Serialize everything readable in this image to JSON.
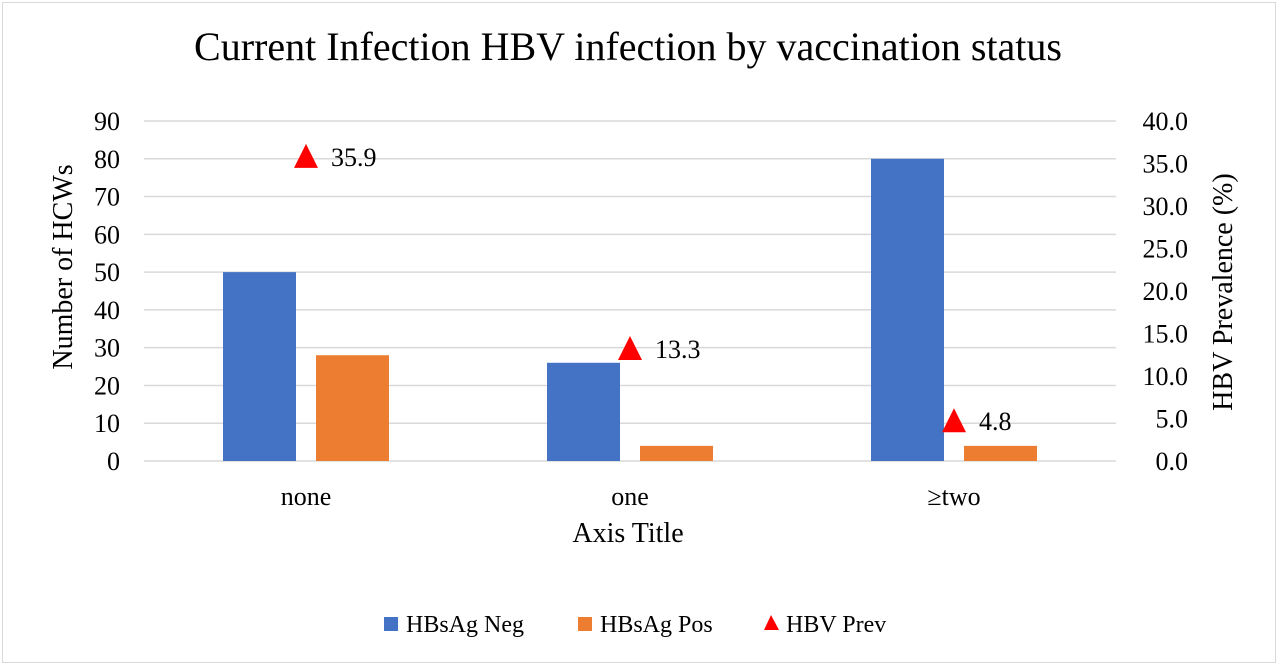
{
  "chart_data": {
    "type": "bar",
    "title": "Current Infection HBV infection by vaccination status",
    "xlabel": "Axis Title",
    "ylabel": "Number of HCWs",
    "y2label": "HBV Prevalence (%)",
    "categories": [
      "none",
      "one",
      "≥two"
    ],
    "ylim": [
      0,
      90
    ],
    "y_ticks": [
      "0",
      "10",
      "20",
      "30",
      "40",
      "50",
      "60",
      "70",
      "80",
      "90"
    ],
    "y2lim": [
      0,
      40
    ],
    "y2_ticks": [
      "0.0",
      "5.0",
      "10.0",
      "15.0",
      "20.0",
      "25.0",
      "30.0",
      "35.0",
      "40.0"
    ],
    "grid": true,
    "legend_position": "bottom",
    "series": [
      {
        "name": "HBsAg Neg",
        "kind": "bar",
        "axis": "left",
        "color": "#4472C4",
        "values": [
          50,
          26,
          80
        ]
      },
      {
        "name": "HBsAg Pos",
        "kind": "bar",
        "axis": "left",
        "color": "#ED7D31",
        "values": [
          28,
          4,
          4
        ]
      },
      {
        "name": "HBV Prev",
        "kind": "marker",
        "marker": "triangle",
        "axis": "right",
        "color": "#FF0000",
        "values": [
          35.9,
          13.3,
          4.8
        ],
        "labels": [
          "35.9",
          "13.3",
          "4.8"
        ]
      }
    ]
  }
}
